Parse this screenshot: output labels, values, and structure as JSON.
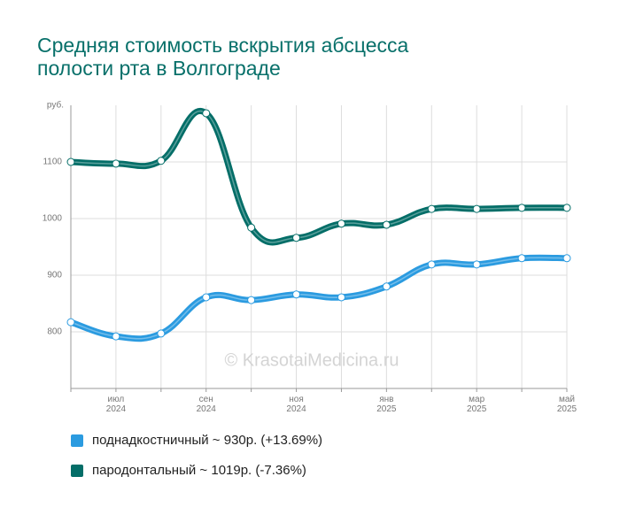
{
  "chart_data": {
    "type": "line",
    "title": "Средняя стоимость вскрытия абсцесса\nполости рта в Волгограде",
    "y_unit": "руб.",
    "watermark": "© KrasotaiMedicina.ru",
    "categories": [
      null,
      "июл\n2024",
      null,
      "сен\n2024",
      null,
      "ноя\n2024",
      null,
      "янв\n2025",
      null,
      "мар\n2025",
      null,
      "май\n2025"
    ],
    "series": [
      {
        "name": "поднадкостничный ~ 930р. (+13.69%)",
        "color": "#2b9be0",
        "values": [
          817,
          792,
          797,
          861,
          856,
          866,
          861,
          880,
          919,
          919,
          930,
          930
        ]
      },
      {
        "name": "пародонтальный ~ 1019р. (-7.36%)",
        "color": "#046e68",
        "values": [
          1100,
          1097,
          1102,
          1186,
          984,
          966,
          991,
          989,
          1017,
          1017,
          1019,
          1019
        ]
      }
    ],
    "ylim": [
      700,
      1200
    ],
    "yticks": [
      800,
      900,
      1000,
      1100
    ],
    "grid": true
  }
}
